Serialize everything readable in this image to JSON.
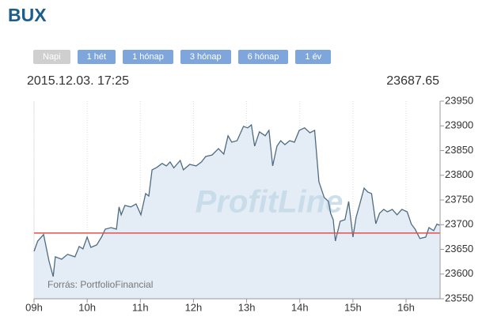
{
  "header": {
    "title": "BUX",
    "buttons": [
      "Napi",
      "1 hét",
      "1 hónap",
      "3 hónap",
      "6 hónap",
      "1 év"
    ],
    "timestamp": "2015.12.03. 17:25",
    "last_value": "23687.65"
  },
  "chart_data": {
    "type": "area",
    "watermark": "ProfitLine",
    "source": "Forrás: PortfolioFinancial",
    "x": [
      9.0,
      9.07,
      9.18,
      9.28,
      9.36,
      9.4,
      9.52,
      9.63,
      9.77,
      9.85,
      9.92,
      10.0,
      10.07,
      10.18,
      10.27,
      10.34,
      10.45,
      10.55,
      10.6,
      10.64,
      10.71,
      10.82,
      10.92,
      11.01,
      11.1,
      11.16,
      11.22,
      11.31,
      11.41,
      11.49,
      11.56,
      11.63,
      11.75,
      11.81,
      11.93,
      12.05,
      12.15,
      12.23,
      12.35,
      12.47,
      12.57,
      12.65,
      12.72,
      12.82,
      12.94,
      13.02,
      13.09,
      13.15,
      13.24,
      13.35,
      13.42,
      13.49,
      13.57,
      13.64,
      13.72,
      13.81,
      13.9,
      13.99,
      14.09,
      14.19,
      14.28,
      14.36,
      14.46,
      14.54,
      14.58,
      14.63,
      14.67,
      14.76,
      14.85,
      14.92,
      15.0,
      15.06,
      15.13,
      15.21,
      15.28,
      15.35,
      15.43,
      15.5,
      15.58,
      15.65,
      15.74,
      15.83,
      15.92,
      16.02,
      16.1,
      16.17,
      16.26,
      16.37,
      16.43,
      16.52,
      16.58,
      16.63
    ],
    "values": [
      23646,
      23667,
      23680,
      23627,
      23595,
      23635,
      23630,
      23640,
      23635,
      23656,
      23651,
      23675,
      23654,
      23659,
      23675,
      23691,
      23694,
      23691,
      23736,
      23720,
      23739,
      23736,
      23742,
      23720,
      23763,
      23758,
      23811,
      23816,
      23824,
      23819,
      23827,
      23815,
      23830,
      23811,
      23822,
      23819,
      23827,
      23838,
      23841,
      23854,
      23843,
      23880,
      23867,
      23870,
      23899,
      23896,
      23902,
      23859,
      23888,
      23880,
      23891,
      23819,
      23859,
      23870,
      23862,
      23870,
      23867,
      23891,
      23896,
      23886,
      23891,
      23787,
      23755,
      23747,
      23723,
      23710,
      23667,
      23707,
      23710,
      23747,
      23675,
      23715,
      23742,
      23774,
      23766,
      23763,
      23702,
      23723,
      23731,
      23726,
      23731,
      23720,
      23731,
      23726,
      23701,
      23691,
      23672,
      23675,
      23694,
      23688,
      23701,
      23699
    ],
    "line_color": "#4f6b80",
    "fill_color": "#e4edf6",
    "reference_line": 23683,
    "reference_color": "#e05050",
    "xlim": [
      9,
      16.64
    ],
    "xticks": [
      {
        "value": 9,
        "label": "09h"
      },
      {
        "value": 10,
        "label": "10h"
      },
      {
        "value": 11,
        "label": "11h"
      },
      {
        "value": 12,
        "label": "12h"
      },
      {
        "value": 13,
        "label": "13h"
      },
      {
        "value": 14,
        "label": "14h"
      },
      {
        "value": 15,
        "label": "15h"
      },
      {
        "value": 16,
        "label": "16h"
      }
    ],
    "ylim": [
      23550,
      23950
    ],
    "yticks": [
      23550,
      23600,
      23650,
      23700,
      23750,
      23800,
      23850,
      23900,
      23950
    ],
    "grid": true
  }
}
